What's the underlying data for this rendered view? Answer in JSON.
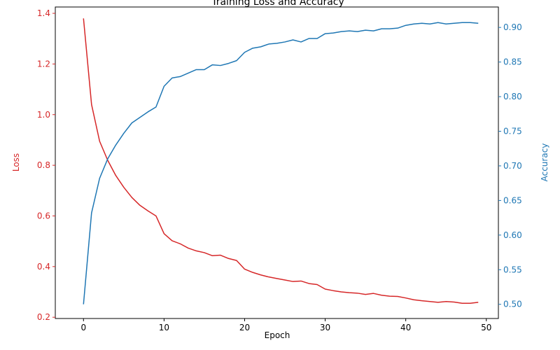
{
  "chart_data": {
    "type": "line",
    "title": "Training Loss and Accuracy",
    "xlabel": "Epoch",
    "ylabel_left": "Loss",
    "ylabel_right": "Accuracy",
    "xlim": [
      -3.5,
      51.5
    ],
    "ylim_left": [
      0.195,
      1.425
    ],
    "ylim_right": [
      0.4795,
      0.9295
    ],
    "x_ticks": [
      0,
      10,
      20,
      30,
      40,
      50
    ],
    "y_ticks_left": [
      0.2,
      0.4,
      0.6,
      0.8,
      1.0,
      1.2,
      1.4
    ],
    "y_ticks_right": [
      0.5,
      0.55,
      0.6,
      0.65,
      0.7,
      0.75,
      0.8,
      0.85,
      0.9
    ],
    "grid": false,
    "colors": {
      "loss": "#d62728",
      "accuracy": "#1f77b4",
      "axis": "#000000"
    },
    "x": [
      0,
      1,
      2,
      3,
      4,
      5,
      6,
      7,
      8,
      9,
      10,
      11,
      12,
      13,
      14,
      15,
      16,
      17,
      18,
      19,
      20,
      21,
      22,
      23,
      24,
      25,
      26,
      27,
      28,
      29,
      30,
      31,
      32,
      33,
      34,
      35,
      36,
      37,
      38,
      39,
      40,
      41,
      42,
      43,
      44,
      45,
      46,
      47,
      48,
      49
    ],
    "series": [
      {
        "key": "loss",
        "axis": "left",
        "values": [
          1.38,
          1.04,
          0.895,
          0.82,
          0.76,
          0.713,
          0.673,
          0.642,
          0.62,
          0.6,
          0.53,
          0.502,
          0.49,
          0.473,
          0.462,
          0.455,
          0.443,
          0.445,
          0.432,
          0.424,
          0.39,
          0.377,
          0.367,
          0.359,
          0.353,
          0.347,
          0.341,
          0.343,
          0.333,
          0.329,
          0.311,
          0.305,
          0.3,
          0.297,
          0.295,
          0.29,
          0.294,
          0.287,
          0.283,
          0.282,
          0.276,
          0.269,
          0.265,
          0.262,
          0.259,
          0.262,
          0.26,
          0.255,
          0.255,
          0.259
        ]
      },
      {
        "key": "accuracy",
        "axis": "right",
        "values": [
          0.5,
          0.632,
          0.682,
          0.71,
          0.73,
          0.747,
          0.762,
          0.77,
          0.778,
          0.785,
          0.815,
          0.827,
          0.829,
          0.834,
          0.839,
          0.839,
          0.846,
          0.845,
          0.848,
          0.852,
          0.864,
          0.87,
          0.872,
          0.876,
          0.877,
          0.879,
          0.882,
          0.879,
          0.884,
          0.884,
          0.891,
          0.892,
          0.894,
          0.895,
          0.894,
          0.896,
          0.895,
          0.898,
          0.898,
          0.899,
          0.903,
          0.905,
          0.906,
          0.905,
          0.907,
          0.905,
          0.906,
          0.907,
          0.907,
          0.906
        ]
      }
    ]
  }
}
